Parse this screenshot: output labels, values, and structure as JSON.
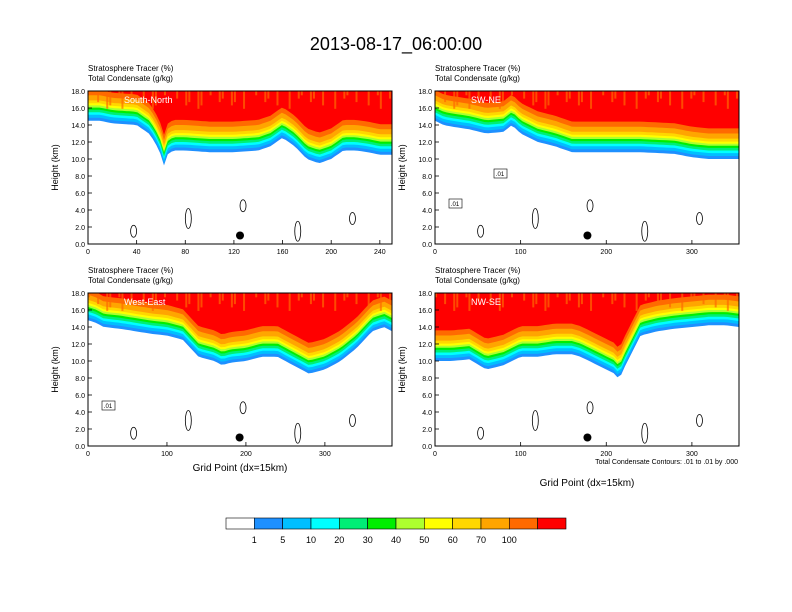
{
  "title": "2013-08-17_06:00:00",
  "colors": {
    "levels": [
      "#ffffff",
      "#1e90ff",
      "#00bfff",
      "#00ffff",
      "#00ee76",
      "#00ee00",
      "#adff2f",
      "#ffff00",
      "#ffd700",
      "#ffa500",
      "#ff6a00",
      "#ff0000"
    ]
  },
  "chart_data": {
    "type": "contour-panels",
    "variable_label": "Stratosphere Tracer   (%)",
    "contour_label": "Total Condensate   (g/kg)",
    "ylabel": "Height (km)",
    "xlabel": "Grid Point (dx=15km)",
    "ylim": [
      0,
      18
    ],
    "yticks": [
      "0.0",
      "2.0",
      "4.0",
      "6.0",
      "8.0",
      "10.0",
      "12.0",
      "14.0",
      "16.0",
      "18.0"
    ],
    "contour_note": "Total Condensate Contours: .01 to .01 by .000",
    "colorbar_labels": [
      "1",
      "5",
      "10",
      "20",
      "30",
      "40",
      "50",
      "60",
      "70",
      "100"
    ],
    "panels": [
      {
        "name": "South-North",
        "xlim": [
          0,
          250
        ],
        "xticks": [
          "0",
          "40",
          "80",
          "120",
          "160",
          "200",
          "240"
        ],
        "xtick_values": [
          0,
          40,
          80,
          120,
          160,
          200,
          240
        ],
        "tropopause_x": [
          0,
          10,
          20,
          40,
          50,
          55,
          60,
          62,
          65,
          70,
          80,
          100,
          120,
          140,
          150,
          160,
          170,
          180,
          190,
          200,
          210,
          220,
          230,
          240,
          250
        ],
        "tropopause_km": [
          14.5,
          14.5,
          14.2,
          14.0,
          13.0,
          12.0,
          10.5,
          9.0,
          10.5,
          11.0,
          11.0,
          10.8,
          10.8,
          11.0,
          11.5,
          12.5,
          11.5,
          10.0,
          9.5,
          10.0,
          11.0,
          11.0,
          10.8,
          10.5,
          10.5
        ],
        "dot_x": 125,
        "labels": []
      },
      {
        "name": "SW-NE",
        "xlim": [
          0,
          355
        ],
        "xticks": [
          "0",
          "100",
          "200",
          "300"
        ],
        "xtick_values": [
          0,
          100,
          200,
          300
        ],
        "tropopause_x": [
          0,
          10,
          20,
          40,
          60,
          80,
          90,
          100,
          120,
          140,
          160,
          200,
          240,
          280,
          300,
          320,
          340,
          355
        ],
        "tropopause_km": [
          14.5,
          14.0,
          13.8,
          13.5,
          13.0,
          13.2,
          14.0,
          13.0,
          12.0,
          11.5,
          10.8,
          10.8,
          10.8,
          10.6,
          10.2,
          10.0,
          10.0,
          10.0
        ],
        "dot_x": 178,
        "labels": [
          ".01",
          ".01"
        ]
      },
      {
        "name": "West-East",
        "xlim": [
          0,
          385
        ],
        "xticks": [
          "0",
          "100",
          "200",
          "300"
        ],
        "xtick_values": [
          0,
          100,
          200,
          300
        ],
        "tropopause_x": [
          0,
          10,
          20,
          40,
          60,
          80,
          100,
          120,
          130,
          140,
          160,
          170,
          180,
          200,
          220,
          240,
          260,
          270,
          280,
          300,
          320,
          340,
          360,
          375,
          385
        ],
        "tropopause_km": [
          14.8,
          14.5,
          14.0,
          13.8,
          13.5,
          13.2,
          13.0,
          12.5,
          11.5,
          10.5,
          10.0,
          9.5,
          9.8,
          10.0,
          10.5,
          10.5,
          9.5,
          9.0,
          8.5,
          9.0,
          10.0,
          11.5,
          13.5,
          14.0,
          13.5
        ],
        "dot_x": 192,
        "labels": [
          ".01"
        ]
      },
      {
        "name": "NW-SE",
        "xlim": [
          0,
          355
        ],
        "xticks": [
          "0",
          "100",
          "200",
          "300"
        ],
        "xtick_values": [
          0,
          100,
          200,
          300
        ],
        "tropopause_x": [
          0,
          20,
          40,
          60,
          80,
          100,
          120,
          140,
          160,
          170,
          180,
          190,
          200,
          210,
          215,
          220,
          230,
          240,
          260,
          280,
          300,
          320,
          340,
          355
        ],
        "tropopause_km": [
          10.0,
          10.0,
          10.2,
          9.0,
          9.5,
          10.5,
          10.5,
          10.8,
          10.8,
          10.5,
          10.0,
          9.5,
          9.0,
          8.5,
          7.8,
          9.0,
          11.0,
          13.0,
          13.5,
          13.8,
          14.0,
          14.2,
          14.2,
          14.0
        ],
        "dot_x": 178,
        "labels": []
      }
    ]
  }
}
